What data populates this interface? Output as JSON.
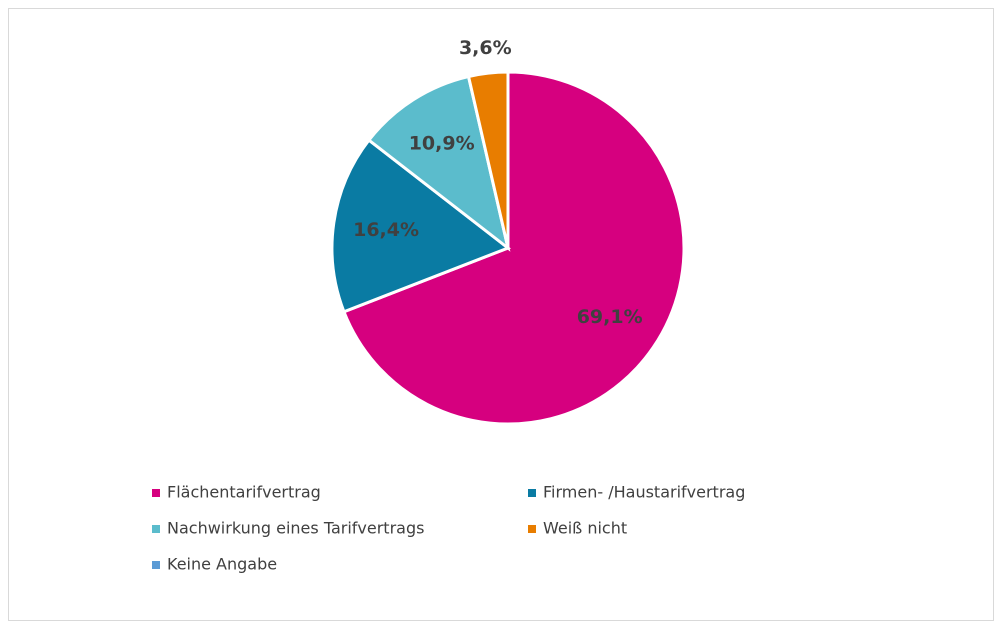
{
  "chart_data": {
    "type": "pie",
    "categories": [
      "Flächentarifvertrag",
      "Firmen- /Haustarifvertrag",
      "Nachwirkung eines Tarifvertrags",
      "Weiß nicht",
      "Keine Angabe"
    ],
    "values": [
      69.1,
      16.4,
      10.9,
      3.6,
      0
    ],
    "value_labels": [
      "69,1%",
      "16,4%",
      "10,9%",
      "3,6%",
      null
    ],
    "colors": [
      "#d6007f",
      "#0a7ba3",
      "#5bbccc",
      "#e87d00",
      "#5b9bd5"
    ],
    "legend": "bottom"
  }
}
